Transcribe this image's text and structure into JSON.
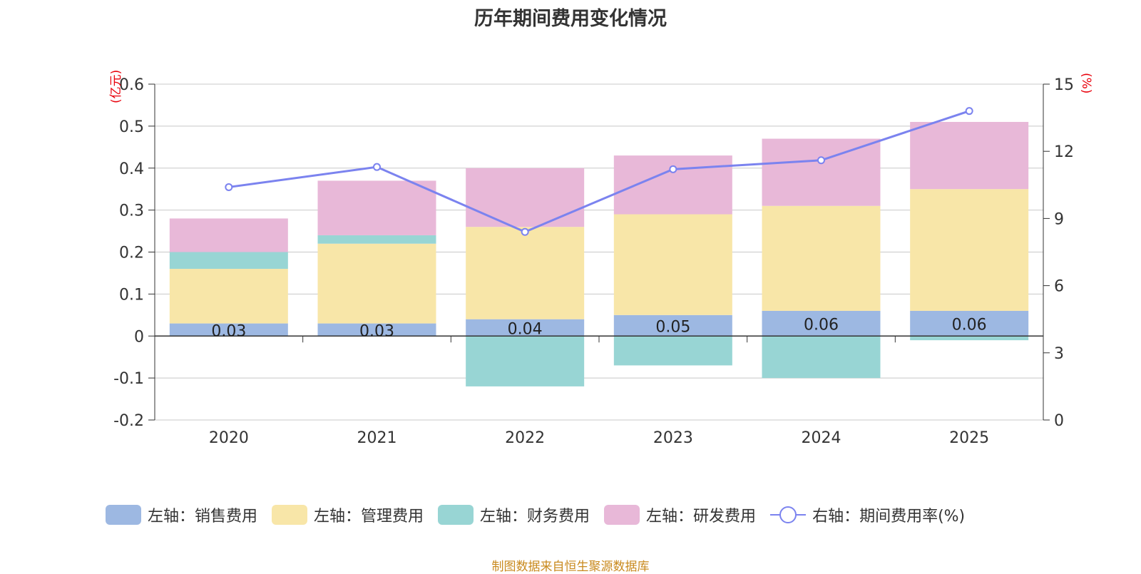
{
  "chart_data": {
    "type": "bar",
    "title": "历年期间费用变化情况",
    "left_axis_unit": "(亿元)",
    "right_axis_unit": "(%)",
    "categories": [
      "2020",
      "2021",
      "2022",
      "2023",
      "2024",
      "2025"
    ],
    "ylim": [
      -0.2,
      0.6
    ],
    "y_ticks": [
      "0.6",
      "0.5",
      "0.4",
      "0.3",
      "0.2",
      "0.1",
      "0",
      "-0.1",
      "-0.2"
    ],
    "y2lim": [
      0,
      15
    ],
    "y2_ticks": [
      "15",
      "12",
      "9",
      "6",
      "3",
      "0"
    ],
    "series": [
      {
        "name": "左轴：销售费用",
        "axis": "left",
        "type": "bar",
        "color": "#9db8e2",
        "values": [
          0.03,
          0.03,
          0.04,
          0.05,
          0.06,
          0.06
        ],
        "labels": [
          "0.03",
          "0.03",
          "0.04",
          "0.05",
          "0.06",
          "0.06"
        ]
      },
      {
        "name": "左轴：管理费用",
        "axis": "left",
        "type": "bar",
        "color": "#f8e6a8",
        "values": [
          0.13,
          0.19,
          0.22,
          0.24,
          0.25,
          0.29
        ]
      },
      {
        "name": "左轴：财务费用",
        "axis": "left",
        "type": "bar",
        "color": "#98d5d4",
        "values": [
          0.04,
          0.02,
          -0.12,
          -0.07,
          -0.1,
          -0.01
        ]
      },
      {
        "name": "左轴：研发费用",
        "axis": "left",
        "type": "bar",
        "color": "#e8b8d8",
        "values": [
          0.08,
          0.13,
          0.14,
          0.14,
          0.16,
          0.16
        ]
      },
      {
        "name": "右轴：期间费用率(%)",
        "axis": "right",
        "type": "line",
        "color": "#7b83ef",
        "values": [
          10.4,
          11.3,
          8.4,
          11.2,
          11.6,
          13.8
        ]
      }
    ]
  },
  "footer": "制图数据来自恒生聚源数据库"
}
